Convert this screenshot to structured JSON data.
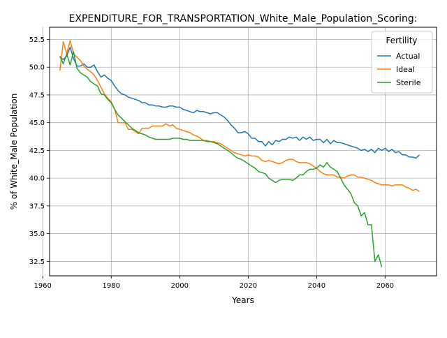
{
  "chart_data": {
    "type": "line",
    "title": "EXPENDITURE_FOR_TRANSPORTATION_White_Male_Population_Scoring:",
    "xlabel": "Years",
    "ylabel": "% of White_Male Population",
    "xlim": [
      1962,
      2075
    ],
    "ylim": [
      31.2,
      53.6
    ],
    "xticks": [
      1960,
      1980,
      2000,
      2020,
      2040,
      2060
    ],
    "yticks": [
      32.5,
      35.0,
      37.5,
      40.0,
      42.5,
      45.0,
      47.5,
      50.0,
      52.5
    ],
    "grid": true,
    "legend": {
      "title": "Fertility",
      "placement": "top-right"
    },
    "colors": {
      "Actual": "#1f77b4",
      "Ideal": "#ff7f0e",
      "Sterile": "#2ca02c"
    },
    "series": [
      {
        "name": "Actual",
        "x": [
          1965,
          1966,
          1967,
          1968,
          1969,
          1970,
          1971,
          1972,
          1973,
          1974,
          1975,
          1976,
          1977,
          1978,
          1979,
          1980,
          1981,
          1982,
          1983,
          1984,
          1985,
          1986,
          1987,
          1988,
          1989,
          1990,
          1991,
          1992,
          1993,
          1994,
          1995,
          1996,
          1997,
          1998,
          1999,
          2000,
          2001,
          2002,
          2003,
          2004,
          2005,
          2006,
          2007,
          2008,
          2009,
          2010,
          2011,
          2012,
          2013,
          2014,
          2015,
          2016,
          2017,
          2018,
          2019,
          2020,
          2021,
          2022,
          2023,
          2024,
          2025,
          2026,
          2027,
          2028,
          2029,
          2030,
          2031,
          2032,
          2033,
          2034,
          2035,
          2036,
          2037,
          2038,
          2039,
          2040,
          2041,
          2042,
          2043,
          2044,
          2045,
          2046,
          2047,
          2048,
          2049,
          2050,
          2051,
          2052,
          2053,
          2054,
          2055,
          2056,
          2057,
          2058,
          2059,
          2060,
          2061,
          2062,
          2063,
          2064,
          2065,
          2066,
          2067,
          2068,
          2069,
          2070
        ],
        "y": [
          50.9,
          50.7,
          51.0,
          51.8,
          50.8,
          50.1,
          50.1,
          50.3,
          50.0,
          50.0,
          50.2,
          49.6,
          49.1,
          49.3,
          49.0,
          48.8,
          48.3,
          47.9,
          47.6,
          47.5,
          47.3,
          47.2,
          47.1,
          47.0,
          46.8,
          46.8,
          46.6,
          46.6,
          46.5,
          46.5,
          46.4,
          46.4,
          46.5,
          46.5,
          46.4,
          46.4,
          46.2,
          46.1,
          46.0,
          45.9,
          46.1,
          46.0,
          46.0,
          45.9,
          45.8,
          45.9,
          45.9,
          45.7,
          45.5,
          45.2,
          44.8,
          44.5,
          44.1,
          44.1,
          44.2,
          44.0,
          43.6,
          43.6,
          43.3,
          43.3,
          42.9,
          43.3,
          43.0,
          43.4,
          43.3,
          43.5,
          43.5,
          43.7,
          43.6,
          43.7,
          43.4,
          43.7,
          43.5,
          43.7,
          43.4,
          43.5,
          43.5,
          43.2,
          43.5,
          43.1,
          43.4,
          43.2,
          43.2,
          43.1,
          43.0,
          42.9,
          42.8,
          42.7,
          42.5,
          42.6,
          42.4,
          42.6,
          42.3,
          42.7,
          42.5,
          42.7,
          42.4,
          42.6,
          42.3,
          42.4,
          42.1,
          42.1,
          41.9,
          41.9,
          41.8,
          42.1
        ]
      },
      {
        "name": "Ideal",
        "x": [
          1965,
          1966,
          1967,
          1968,
          1969,
          1970,
          1971,
          1972,
          1973,
          1974,
          1975,
          1976,
          1977,
          1978,
          1979,
          1980,
          1981,
          1982,
          1983,
          1984,
          1985,
          1986,
          1987,
          1988,
          1989,
          1990,
          1991,
          1992,
          1993,
          1994,
          1995,
          1996,
          1997,
          1998,
          1999,
          2000,
          2001,
          2002,
          2003,
          2004,
          2005,
          2006,
          2007,
          2008,
          2009,
          2010,
          2011,
          2012,
          2013,
          2014,
          2015,
          2016,
          2017,
          2018,
          2019,
          2020,
          2021,
          2022,
          2023,
          2024,
          2025,
          2026,
          2027,
          2028,
          2029,
          2030,
          2031,
          2032,
          2033,
          2034,
          2035,
          2036,
          2037,
          2038,
          2039,
          2040,
          2041,
          2042,
          2043,
          2044,
          2045,
          2046,
          2047,
          2048,
          2049,
          2050,
          2051,
          2052,
          2053,
          2054,
          2055,
          2056,
          2057,
          2058,
          2059,
          2060,
          2061,
          2062,
          2063,
          2064,
          2065,
          2066,
          2067,
          2068,
          2069,
          2070
        ],
        "y": [
          49.7,
          52.3,
          51.2,
          52.4,
          51.2,
          50.9,
          50.6,
          50.1,
          49.8,
          49.6,
          49.3,
          48.8,
          48.2,
          47.6,
          47.2,
          46.9,
          46.2,
          45.0,
          45.0,
          45.0,
          44.4,
          44.4,
          44.2,
          44.0,
          44.5,
          44.5,
          44.5,
          44.7,
          44.7,
          44.7,
          44.7,
          44.9,
          44.7,
          44.8,
          44.5,
          44.4,
          44.3,
          44.2,
          44.1,
          43.9,
          43.8,
          43.6,
          43.4,
          43.4,
          43.3,
          43.3,
          43.2,
          43.1,
          42.9,
          42.7,
          42.5,
          42.3,
          42.2,
          42.1,
          42.0,
          42.1,
          42.0,
          42.0,
          41.9,
          41.6,
          41.5,
          41.6,
          41.5,
          41.4,
          41.3,
          41.4,
          41.6,
          41.7,
          41.7,
          41.5,
          41.4,
          41.4,
          41.4,
          41.3,
          41.1,
          40.9,
          40.6,
          40.4,
          40.3,
          40.3,
          40.3,
          40.1,
          40.1,
          40.0,
          40.2,
          40.3,
          40.3,
          40.1,
          40.1,
          40.0,
          39.9,
          39.8,
          39.6,
          39.5,
          39.4,
          39.4,
          39.4,
          39.3,
          39.4,
          39.4,
          39.4,
          39.2,
          39.1,
          38.9,
          39.0,
          38.8
        ]
      },
      {
        "name": "Sterile",
        "x": [
          1965,
          1966,
          1967,
          1968,
          1969,
          1970,
          1971,
          1972,
          1973,
          1974,
          1975,
          1976,
          1977,
          1978,
          1979,
          1980,
          1981,
          1982,
          1983,
          1984,
          1985,
          1986,
          1987,
          1988,
          1989,
          1990,
          1991,
          1992,
          1993,
          1994,
          1995,
          1996,
          1997,
          1998,
          1999,
          2000,
          2001,
          2002,
          2003,
          2004,
          2005,
          2006,
          2007,
          2008,
          2009,
          2010,
          2011,
          2012,
          2013,
          2014,
          2015,
          2016,
          2017,
          2018,
          2019,
          2020,
          2021,
          2022,
          2023,
          2024,
          2025,
          2026,
          2027,
          2028,
          2029,
          2030,
          2031,
          2032,
          2033,
          2034,
          2035,
          2036,
          2037,
          2038,
          2039,
          2040,
          2041,
          2042,
          2043,
          2044,
          2045,
          2046,
          2047,
          2048,
          2049,
          2050,
          2051,
          2052,
          2053,
          2054,
          2055,
          2056,
          2057,
          2058,
          2059
        ],
        "y": [
          51.0,
          50.3,
          51.2,
          50.2,
          51.4,
          49.9,
          49.5,
          49.3,
          49.1,
          48.7,
          48.5,
          48.3,
          47.6,
          47.5,
          47.1,
          46.8,
          46.2,
          45.7,
          45.4,
          45.1,
          44.8,
          44.5,
          44.3,
          44.1,
          44.0,
          43.9,
          43.7,
          43.6,
          43.5,
          43.5,
          43.5,
          43.5,
          43.5,
          43.6,
          43.6,
          43.6,
          43.5,
          43.5,
          43.4,
          43.4,
          43.4,
          43.4,
          43.4,
          43.3,
          43.3,
          43.2,
          43.1,
          42.9,
          42.7,
          42.5,
          42.3,
          42.0,
          41.8,
          41.7,
          41.5,
          41.3,
          41.1,
          40.9,
          40.6,
          40.5,
          40.4,
          40.0,
          39.8,
          39.6,
          39.8,
          39.9,
          39.9,
          39.9,
          39.8,
          40.0,
          40.3,
          40.3,
          40.6,
          40.8,
          40.8,
          40.9,
          41.2,
          41.0,
          41.4,
          41.0,
          40.8,
          40.6,
          40.0,
          39.4,
          39.0,
          38.6,
          37.8,
          37.5,
          36.6,
          36.9,
          35.8,
          35.8,
          32.5,
          33.1,
          32.0
        ]
      }
    ]
  }
}
